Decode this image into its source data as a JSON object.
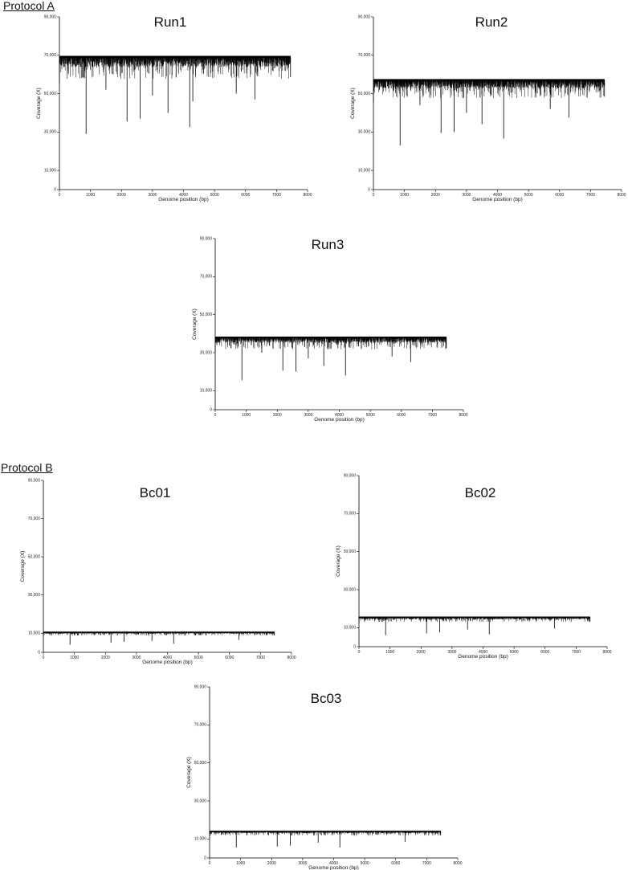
{
  "sections": {
    "protocol_a": "Protocol A",
    "protocol_b": "Protocol B"
  },
  "chart_data": [
    {
      "type": "line",
      "title": "Run1",
      "xlabel": "Genome position (bp)",
      "ylabel": "Coverage (X)",
      "xlim": [
        0,
        8000
      ],
      "ylim": [
        0,
        90000
      ],
      "x_ticks": [
        "0",
        "1000",
        "2000",
        "3000",
        "4000",
        "5000",
        "6000",
        "7000",
        "8000"
      ],
      "y_ticks": [
        "0",
        "10,000",
        "30,000",
        "50,000",
        "70,000",
        "90,000"
      ],
      "baseline": 69000,
      "x_end": 7450,
      "dips": [
        [
          860,
          29000
        ],
        [
          2180,
          35500
        ],
        [
          2600,
          37000
        ],
        [
          3500,
          40000
        ],
        [
          4200,
          32500
        ],
        [
          4300,
          46000
        ],
        [
          6300,
          47000
        ],
        [
          3000,
          49000
        ],
        [
          1500,
          52000
        ],
        [
          5700,
          50000
        ]
      ],
      "color": "#000000"
    },
    {
      "type": "line",
      "title": "Run2",
      "xlabel": "Genome position (bp)",
      "ylabel": "Coverage (X)",
      "xlim": [
        0,
        8000
      ],
      "ylim": [
        0,
        90000
      ],
      "x_ticks": [
        "0",
        "1000",
        "2000",
        "3000",
        "4000",
        "5000",
        "6000",
        "7000",
        "8000"
      ],
      "y_ticks": [
        "0",
        "10,000",
        "30,000",
        "50,000",
        "70,000",
        "90,000"
      ],
      "baseline": 57000,
      "x_end": 7450,
      "dips": [
        [
          860,
          23000
        ],
        [
          2180,
          29500
        ],
        [
          2600,
          30000
        ],
        [
          3500,
          34000
        ],
        [
          4200,
          26500
        ],
        [
          6300,
          37500
        ],
        [
          3000,
          40000
        ],
        [
          1500,
          44000
        ],
        [
          5700,
          42000
        ]
      ],
      "color": "#000000"
    },
    {
      "type": "line",
      "title": "Run3",
      "xlabel": "Genome position (bp)",
      "ylabel": "Coverage (X)",
      "xlim": [
        0,
        8000
      ],
      "ylim": [
        0,
        90000
      ],
      "x_ticks": [
        "0",
        "1000",
        "2000",
        "3000",
        "4000",
        "5000",
        "6000",
        "7000",
        "8000"
      ],
      "y_ticks": [
        "0",
        "10,000",
        "30,000",
        "50,000",
        "70,000",
        "90,000"
      ],
      "baseline": 38000,
      "x_end": 7450,
      "dips": [
        [
          860,
          15500
        ],
        [
          2180,
          20500
        ],
        [
          2600,
          20000
        ],
        [
          3500,
          23000
        ],
        [
          4200,
          18000
        ],
        [
          6300,
          25000
        ],
        [
          3000,
          27000
        ],
        [
          1500,
          30000
        ],
        [
          5700,
          28000
        ]
      ],
      "color": "#000000"
    },
    {
      "type": "line",
      "title": "Bc01",
      "xlabel": "Genome position (bp)",
      "ylabel": "Coverage (X)",
      "xlim": [
        0,
        8000
      ],
      "ylim": [
        0,
        90000
      ],
      "x_ticks": [
        "0",
        "1000",
        "2000",
        "3000",
        "4000",
        "5000",
        "6000",
        "7000",
        "8000"
      ],
      "y_ticks": [
        "0",
        "10,000",
        "30,000",
        "50,000",
        "70,000",
        "90,000"
      ],
      "baseline": 10500,
      "x_end": 7450,
      "dips": [
        [
          860,
          4000
        ],
        [
          2180,
          5000
        ],
        [
          2600,
          5500
        ],
        [
          3500,
          6000
        ],
        [
          4200,
          4500
        ],
        [
          6300,
          6500
        ]
      ],
      "color": "#000000"
    },
    {
      "type": "line",
      "title": "Bc02",
      "xlabel": "Genome position (bp)",
      "ylabel": "Coverage (X)",
      "xlim": [
        0,
        8000
      ],
      "ylim": [
        0,
        90000
      ],
      "x_ticks": [
        "0",
        "1000",
        "2000",
        "3000",
        "4000",
        "5000",
        "6000",
        "7000",
        "8000"
      ],
      "y_ticks": [
        "0",
        "10,000",
        "30,000",
        "50,000",
        "70,000",
        "90,000"
      ],
      "baseline": 15500,
      "x_end": 7450,
      "dips": [
        [
          860,
          6000
        ],
        [
          2180,
          7000
        ],
        [
          2600,
          7500
        ],
        [
          3500,
          9000
        ],
        [
          4200,
          6500
        ],
        [
          6300,
          9500
        ]
      ],
      "color": "#000000"
    },
    {
      "type": "line",
      "title": "Bc03",
      "xlabel": "Genome position (bp)",
      "ylabel": "Coverage (X)",
      "xlim": [
        0,
        8000
      ],
      "ylim": [
        0,
        90000
      ],
      "x_ticks": [
        "0",
        "1000",
        "2000",
        "3000",
        "4000",
        "5000",
        "6000",
        "7000",
        "8000"
      ],
      "y_ticks": [
        "0",
        "10,000",
        "30,000",
        "50,000",
        "70,000",
        "90,000"
      ],
      "baseline": 14000,
      "x_end": 7450,
      "dips": [
        [
          860,
          5500
        ],
        [
          2180,
          6000
        ],
        [
          2600,
          6500
        ],
        [
          3500,
          8000
        ],
        [
          4200,
          5500
        ],
        [
          6300,
          8500
        ]
      ],
      "color": "#000000"
    }
  ]
}
